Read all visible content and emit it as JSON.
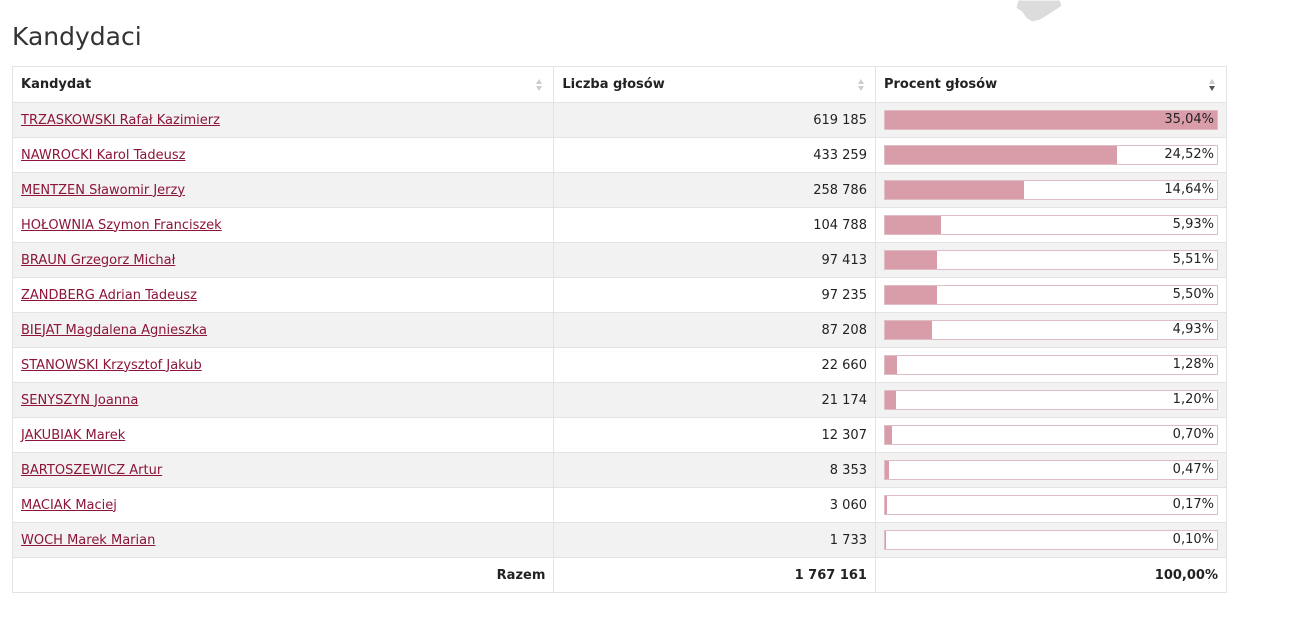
{
  "title": "Kandydaci",
  "columns": {
    "name": "Kandydat",
    "votes": "Liczba głosów",
    "percent": "Procent głosów"
  },
  "rows": [
    {
      "name": "TRZASKOWSKI Rafał Kazimierz",
      "votes": "619 185",
      "percent_label": "35,04%",
      "fill": 1.0
    },
    {
      "name": "NAWROCKI Karol Tadeusz",
      "votes": "433 259",
      "percent_label": "24,52%",
      "fill": 0.7
    },
    {
      "name": "MENTZEN Sławomir Jerzy",
      "votes": "258 786",
      "percent_label": "14,64%",
      "fill": 0.418
    },
    {
      "name": "HOŁOWNIA Szymon Franciszek",
      "votes": "104 788",
      "percent_label": "5,93%",
      "fill": 0.169
    },
    {
      "name": "BRAUN Grzegorz Michał",
      "votes": "97 413",
      "percent_label": "5,51%",
      "fill": 0.157
    },
    {
      "name": "ZANDBERG Adrian Tadeusz",
      "votes": "97 235",
      "percent_label": "5,50%",
      "fill": 0.157
    },
    {
      "name": "BIEJAT Magdalena Agnieszka",
      "votes": "87 208",
      "percent_label": "4,93%",
      "fill": 0.141
    },
    {
      "name": "STANOWSKI Krzysztof Jakub",
      "votes": "22 660",
      "percent_label": "1,28%",
      "fill": 0.037
    },
    {
      "name": "SENYSZYN Joanna",
      "votes": "21 174",
      "percent_label": "1,20%",
      "fill": 0.034
    },
    {
      "name": "JAKUBIAK Marek",
      "votes": "12 307",
      "percent_label": "0,70%",
      "fill": 0.02
    },
    {
      "name": "BARTOSZEWICZ Artur",
      "votes": "8 353",
      "percent_label": "0,47%",
      "fill": 0.013
    },
    {
      "name": "MACIAK Maciej",
      "votes": "3 060",
      "percent_label": "0,17%",
      "fill": 0.005
    },
    {
      "name": "WOCH Marek Marian",
      "votes": "1 733",
      "percent_label": "0,10%",
      "fill": 0.003
    }
  ],
  "total": {
    "label": "Razem",
    "votes": "1 767 161",
    "percent": "100,00%"
  },
  "colors": {
    "link": "#8c1538",
    "bar": "#d99daa",
    "bar_border": "#e0bcc5",
    "row_alt": "#f2f2f2"
  }
}
